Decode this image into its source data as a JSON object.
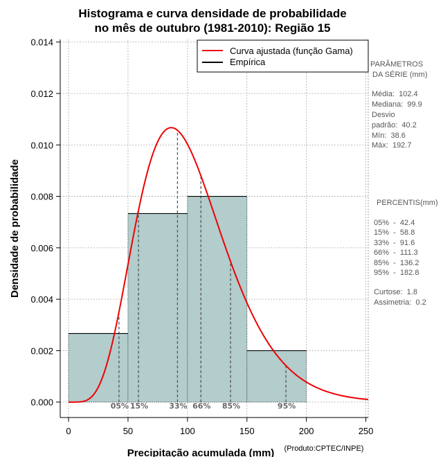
{
  "chart_data": {
    "type": "bar",
    "title_lines": [
      "Histograma e curva densidade de probabilidade",
      "no mês de outubro (1981-2010): Região 15"
    ],
    "xlabel": "Precipitação acumulada (mm)",
    "ylabel": "Densidade de probabilidade",
    "credit": "(Produto:CPTEC/INPE)",
    "xlim": [
      -7,
      252
    ],
    "ylim": [
      -0.0006,
      0.0141
    ],
    "x_ticks": [
      0,
      50,
      100,
      150,
      200,
      250
    ],
    "x_tick_labels": [
      "0",
      "50",
      "100",
      "150",
      "200",
      "250"
    ],
    "y_ticks": [
      0,
      0.002,
      0.004,
      0.006,
      0.008,
      0.01,
      0.012,
      0.014
    ],
    "y_tick_labels": [
      "0.000",
      "0.002",
      "0.004",
      "0.006",
      "0.008",
      "0.010",
      "0.012",
      "0.014"
    ],
    "grid": true,
    "colors": {
      "bar_fill": "#b3cccc",
      "curve": "#ee0000",
      "empirical": "#000000",
      "percentile_line": "#555555",
      "grid": "#aaaaaa"
    },
    "histogram": [
      {
        "x0": 0,
        "x1": 50,
        "density": 0.00267
      },
      {
        "x0": 50,
        "x1": 100,
        "density": 0.00733
      },
      {
        "x0": 100,
        "x1": 150,
        "density": 0.008
      },
      {
        "x0": 150,
        "x1": 200,
        "density": 0.002
      }
    ],
    "gamma_fit": {
      "shape": 6.5,
      "scale": 15.7,
      "x_max": 252
    },
    "percentiles": [
      {
        "label": "05%",
        "value": 42.4
      },
      {
        "label": "15%",
        "value": 58.8
      },
      {
        "label": "33%",
        "value": 91.6
      },
      {
        "label": "66%",
        "value": 111.3
      },
      {
        "label": "85%",
        "value": 136.2
      },
      {
        "label": "95%",
        "value": 182.8
      }
    ],
    "legend": {
      "position": "top-right",
      "entries": [
        {
          "label": "Curva ajustada (função Gama)",
          "color": "#ee0000"
        },
        {
          "label": "Empírica",
          "color": "#000000"
        }
      ]
    }
  },
  "side_panel": {
    "params_title": [
      "PARÂMETROS",
      " DA SÉRIE (mm)"
    ],
    "params_lines": [
      "Média:  102.4",
      "Mediana:  99.9",
      "Desvio",
      "padrão:  40.2",
      "Mín:  38.6",
      "Máx:  192.7"
    ],
    "percentis_title": "PERCENTIS(mm)",
    "percentis_lines": [
      "05%  -  42.4",
      "15%  -  58.8",
      "33%  -  91.6",
      "66%  -  111.3",
      "85%  -  136.2",
      "95%  -  182.8"
    ],
    "stats_lines": [
      "Curtose:  1.8",
      "Assimetria:  0.2"
    ]
  }
}
